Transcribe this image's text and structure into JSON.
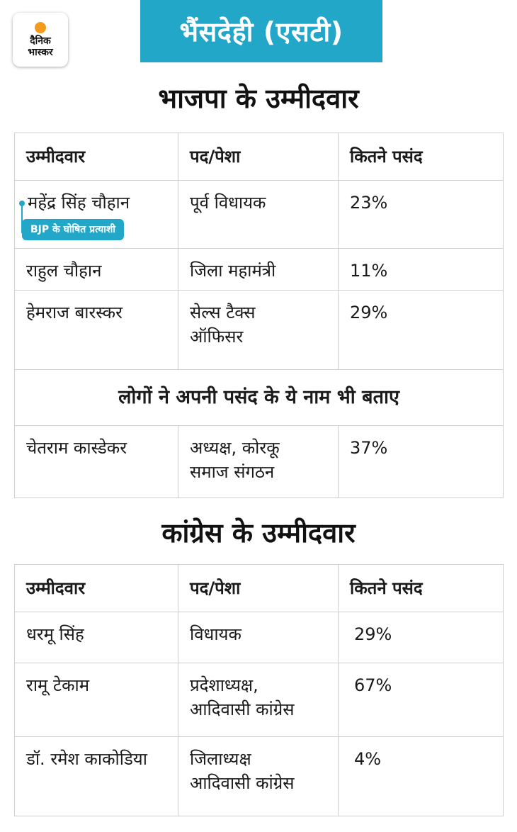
{
  "logo": {
    "line1": "दैनिक",
    "line2": "भास्कर"
  },
  "header": {
    "title": "भैंसदेही (एसटी)"
  },
  "bjp": {
    "title": "भाजपा के उम्मीदवार",
    "columns": [
      "उम्मीदवार",
      "पद/पेशा",
      "कितने पसंद"
    ],
    "rows": [
      {
        "name": "महेंद्र सिंह चौहान",
        "badge": "BJP के घोषित प्रत्याशी",
        "post_line1": "पूर्व विधायक",
        "post_line2": "",
        "pct": "23%"
      },
      {
        "name": "राहुल चौहान",
        "post_line1": "जिला महामंत्री",
        "post_line2": "",
        "pct": "11%"
      },
      {
        "name": "हेमराज बारस्कर",
        "post_line1": "सेल्स टैक्स",
        "post_line2": "ऑफिसर",
        "pct": "29%"
      }
    ],
    "subheading": "लोगों ने अपनी पसंद के ये नाम भी बताए",
    "extra_rows": [
      {
        "name": "चेतराम कास्डेकर",
        "post_line1": "अध्यक्ष, कोरकू",
        "post_line2": "समाज संगठन",
        "pct": "37%"
      }
    ]
  },
  "inc": {
    "title": "कांग्रेस के उम्मीदवार",
    "columns": [
      "उम्मीदवार",
      "पद/पेशा",
      "कितने पसंद"
    ],
    "rows": [
      {
        "name": "धरमू सिंह",
        "post_line1": "विधायक",
        "post_line2": "",
        "pct": "29%"
      },
      {
        "name": "रामू टेकाम",
        "post_line1": "प्रदेशाध्यक्ष,",
        "post_line2": "आदिवासी कांग्रेस",
        "pct": "67%"
      },
      {
        "name": "डॉ. रमेश काकोडिया",
        "post_line1": "जिलाध्यक्ष",
        "post_line2": "आदिवासी कांग्रेस",
        "pct": "4%"
      }
    ]
  },
  "colors": {
    "accent": "#22a7c9",
    "logo_sun": "#f49a1c"
  }
}
